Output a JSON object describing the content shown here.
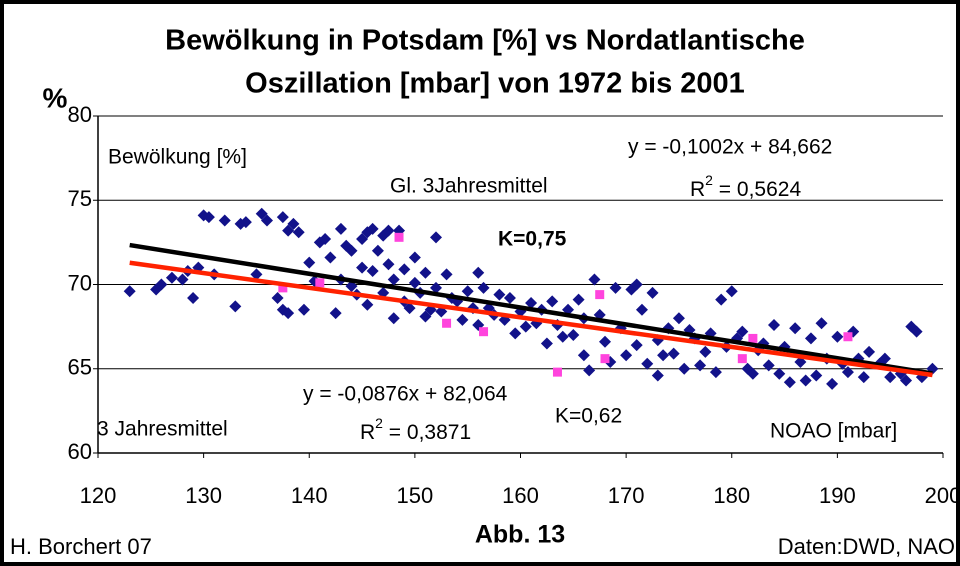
{
  "chart_data": {
    "type": "scatter",
    "title": [
      "Bewölkung in Potsdam [%] vs Nordatlantische",
      "Oszillation [mbar]  von 1972 bis 2001"
    ],
    "y_label": "%",
    "xlim": [
      120,
      200
    ],
    "xticks": [
      120,
      130,
      140,
      150,
      160,
      170,
      180,
      190,
      200
    ],
    "ylim": [
      60,
      80
    ],
    "yticks": [
      60,
      65,
      70,
      75,
      80
    ],
    "grid": true,
    "series": [
      {
        "color": "#12128a",
        "marker": "diamond",
        "x": [
          123,
          125.5,
          126,
          127,
          128,
          128.5,
          129,
          129.5,
          130,
          130.5,
          131,
          132,
          133,
          133.5,
          134,
          135,
          135.5,
          136,
          137,
          137.5,
          137.5,
          138,
          138,
          138.5,
          139,
          139.5,
          140,
          140.5,
          141,
          141.5,
          142,
          142.5,
          143,
          143,
          143.5,
          144,
          144,
          144.5,
          145,
          145,
          145.5,
          145.5,
          146,
          146,
          146.5,
          147,
          147,
          147.5,
          147.5,
          148,
          148,
          148.5,
          149,
          149,
          149.5,
          150,
          150,
          150.5,
          151,
          151,
          151.5,
          152,
          152,
          152.5,
          153,
          153.5,
          154,
          154.5,
          155,
          155.5,
          156,
          156,
          156.5,
          157,
          157.5,
          158,
          158.5,
          159,
          159.5,
          160,
          160.5,
          161,
          161.5,
          162,
          162.5,
          163,
          163.5,
          164,
          164.5,
          165,
          165.5,
          166,
          166,
          166.5,
          167,
          167.5,
          168,
          168.5,
          169,
          169.5,
          170,
          170.5,
          171,
          171,
          171.5,
          172,
          172.5,
          173,
          173,
          173.5,
          174,
          174.5,
          175,
          175.5,
          176,
          176.5,
          177,
          177.5,
          178,
          178.5,
          179,
          179.5,
          180,
          180.5,
          181,
          181.5,
          182,
          182.5,
          183,
          183.5,
          184,
          184.5,
          185,
          185.5,
          186,
          186.5,
          187,
          187.5,
          188,
          188.5,
          189,
          189.5,
          190,
          190.5,
          191,
          191.5,
          192,
          192.5,
          193,
          194,
          194.5,
          195,
          196,
          196.5,
          197,
          197.5,
          198,
          199
        ],
        "values": [
          69.6,
          69.7,
          70.0,
          70.4,
          70.3,
          70.8,
          69.2,
          71.0,
          74.1,
          74.0,
          70.6,
          73.8,
          68.7,
          73.6,
          73.7,
          70.6,
          74.2,
          73.8,
          69.2,
          74.0,
          68.5,
          73.2,
          68.3,
          73.6,
          73.1,
          68.5,
          71.3,
          70.2,
          72.5,
          72.7,
          71.6,
          68.3,
          73.3,
          70.3,
          72.3,
          72.0,
          69.9,
          69.4,
          72.7,
          71.0,
          73.1,
          68.8,
          73.3,
          70.8,
          72.0,
          72.9,
          69.5,
          73.2,
          71.2,
          70.3,
          68.0,
          73.2,
          70.9,
          69.0,
          68.6,
          71.6,
          70.1,
          69.5,
          68.1,
          70.7,
          68.5,
          72.8,
          69.8,
          68.4,
          70.6,
          69.2,
          69.0,
          67.9,
          69.6,
          68.6,
          70.7,
          67.6,
          69.8,
          68.6,
          68.2,
          69.4,
          67.9,
          69.2,
          67.1,
          68.4,
          67.5,
          68.9,
          67.7,
          68.5,
          66.5,
          69.0,
          67.6,
          66.9,
          68.5,
          67.0,
          69.1,
          65.8,
          68.0,
          64.9,
          70.3,
          68.2,
          66.6,
          65.4,
          69.8,
          67.4,
          65.8,
          69.7,
          70.0,
          66.4,
          68.5,
          65.3,
          69.5,
          66.7,
          64.6,
          65.8,
          67.4,
          65.9,
          68.0,
          65.0,
          67.3,
          66.8,
          65.2,
          66.0,
          67.1,
          64.8,
          69.1,
          66.3,
          69.6,
          66.8,
          67.2,
          65.0,
          64.7,
          66.1,
          66.5,
          65.2,
          67.6,
          64.7,
          66.3,
          64.2,
          67.4,
          65.4,
          64.3,
          66.8,
          64.6,
          67.7,
          65.6,
          64.1,
          66.9,
          65.3,
          64.8,
          67.2,
          65.6,
          64.5,
          66.0,
          65.3,
          65.6,
          64.5,
          64.7,
          64.3,
          67.5,
          67.2,
          64.5,
          65.0
        ]
      },
      {
        "color": "#ff44dd",
        "marker": "square",
        "x": [
          137.5,
          141,
          148.5,
          153,
          156.5,
          163.5,
          167.5,
          168,
          181,
          182,
          191
        ],
        "values": [
          69.8,
          70.1,
          72.8,
          67.7,
          67.2,
          64.8,
          69.4,
          65.6,
          65.6,
          66.8,
          66.9
        ]
      }
    ],
    "trendlines": [
      {
        "color": "#000000",
        "x": [
          123,
          199
        ],
        "values": [
          72.34,
          64.72
        ]
      },
      {
        "color": "#ff2200",
        "x": [
          123,
          199
        ],
        "values": [
          71.29,
          64.63
        ]
      }
    ],
    "annotations": {
      "bewoelkung": "Bewölkung [%]",
      "gl3": "Gl. 3Jahresmittel",
      "eq1": "y = -0,1002x + 84,662",
      "r1": {
        "base": "R",
        "sup": "2",
        "rest": " = 0,5624"
      },
      "k1": "K=0,75",
      "eq2": "y = -0,0876x + 82,064",
      "r2": {
        "base": "R",
        "sup": "2",
        "rest": " = 0,3871"
      },
      "k2": "K=0,62",
      "jm3": "3 Jahresmittel",
      "noao": "NOAO [mbar]"
    },
    "footer": {
      "left": "H. Borchert 07",
      "center": "Abb. 13",
      "right": "Daten:DWD, NAO"
    }
  }
}
